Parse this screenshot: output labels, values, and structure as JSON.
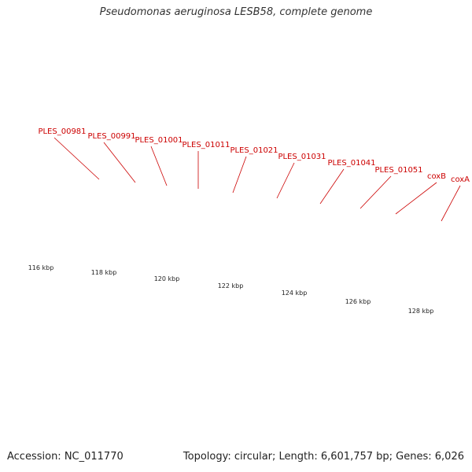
{
  "title": "Pseudomonas aeruginosa LESB58, complete genome",
  "footer": {
    "accession": "Accession: NC_011770",
    "summary": "Topology: circular; Length: 6,601,757 bp; Genes: 6,026"
  },
  "colors": {
    "cds_forward": "#ff1a1a",
    "backbone": "#8c8c8c",
    "gene_label": "#cc0000",
    "tick": "#2e8b2e",
    "cyan_feature": "#00e5ee",
    "purple_feature": "#5a4a9a",
    "navy_feature": "#1a1a8a",
    "gray_feature": "#707070",
    "khaki_feature": "#bdb98a"
  },
  "gene_labels": [
    "PLES_00981",
    "PLES_00991",
    "PLES_01001",
    "PLES_01011",
    "PLES_01021",
    "PLES_01031",
    "PLES_01041",
    "PLES_01051",
    "coxB",
    "coxA"
  ],
  "scale_labels": [
    "116 kbp",
    "118 kbp",
    "120 kbp",
    "122 kbp",
    "124 kbp",
    "126 kbp",
    "128 kbp"
  ]
}
